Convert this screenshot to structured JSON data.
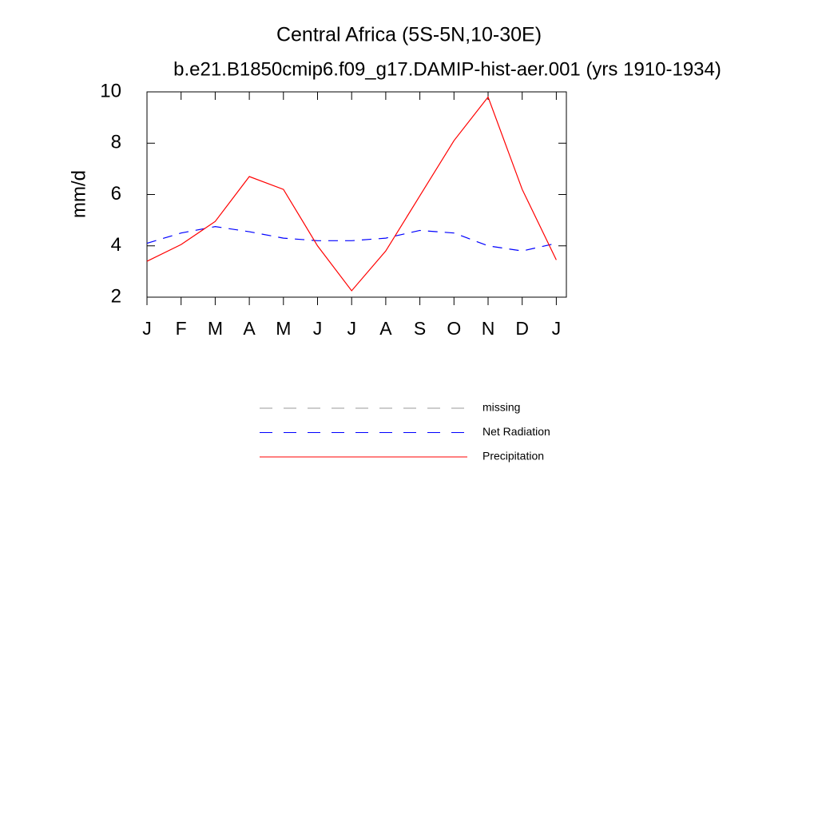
{
  "chart_data": {
    "type": "line",
    "title": "Central Africa (5S-5N,10-30E)",
    "subtitle": "b.e21.B1850cmip6.f09_g17.DAMIP-hist-aer.001 (yrs 1910-1934)",
    "y_label": "mm/d",
    "categories": [
      "J",
      "F",
      "M",
      "A",
      "M",
      "J",
      "J",
      "A",
      "S",
      "O",
      "N",
      "D",
      "J"
    ],
    "ylim": [
      2,
      10
    ],
    "yticks": [
      2,
      4,
      6,
      8,
      10
    ],
    "series": [
      {
        "name": "missing",
        "color": "#999999",
        "dash": true,
        "values": [
          null,
          null,
          null,
          null,
          null,
          null,
          null,
          null,
          null,
          null,
          null,
          null,
          null
        ]
      },
      {
        "name": "Net Radiation",
        "color": "#0000ff",
        "dash": true,
        "values": [
          4.1,
          4.5,
          4.75,
          4.55,
          4.3,
          4.2,
          4.2,
          4.3,
          4.6,
          4.5,
          4.0,
          3.8,
          4.1
        ]
      },
      {
        "name": "Precipitation",
        "color": "#ff0000",
        "dash": false,
        "values": [
          3.4,
          4.05,
          4.95,
          6.7,
          6.2,
          4.0,
          2.25,
          3.8,
          5.95,
          8.1,
          9.8,
          6.2,
          3.45
        ]
      }
    ]
  }
}
